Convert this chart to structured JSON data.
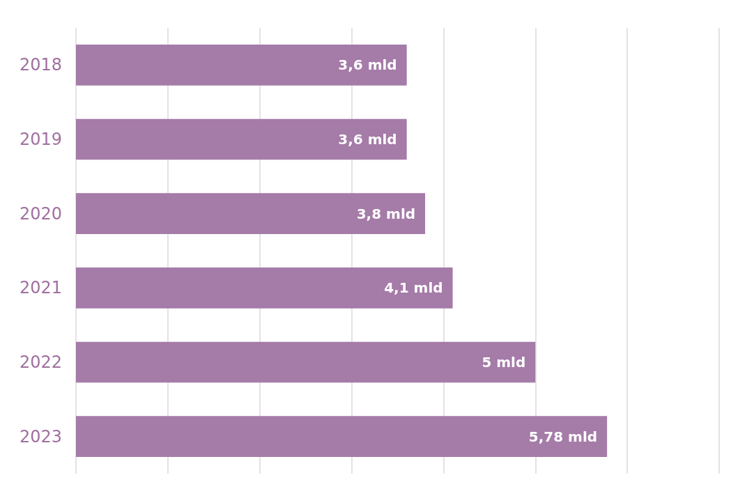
{
  "chart_data": {
    "type": "bar",
    "orientation": "horizontal",
    "categories": [
      "2018",
      "2019",
      "2020",
      "2021",
      "2022",
      "2023"
    ],
    "values": [
      3.6,
      3.6,
      3.8,
      4.1,
      5,
      5.78
    ],
    "value_labels": [
      "3,6 mld",
      "3,6 mld",
      "3,8 mld",
      "4,1 mld",
      "5 mld",
      "5,78 mld"
    ],
    "color": "#a57ba8",
    "xlim": [
      0,
      7
    ],
    "xticks": [
      {
        "value": 0,
        "label": null
      },
      {
        "value": 1,
        "label": null
      },
      {
        "value": 2,
        "label": null
      },
      {
        "value": 3,
        "label": null
      },
      {
        "value": 4,
        "label": null
      },
      {
        "value": 5,
        "label": null
      },
      {
        "value": 6,
        "label": null
      },
      {
        "value": 7,
        "label": null
      }
    ],
    "grid": "x",
    "tick_labels": "y"
  }
}
